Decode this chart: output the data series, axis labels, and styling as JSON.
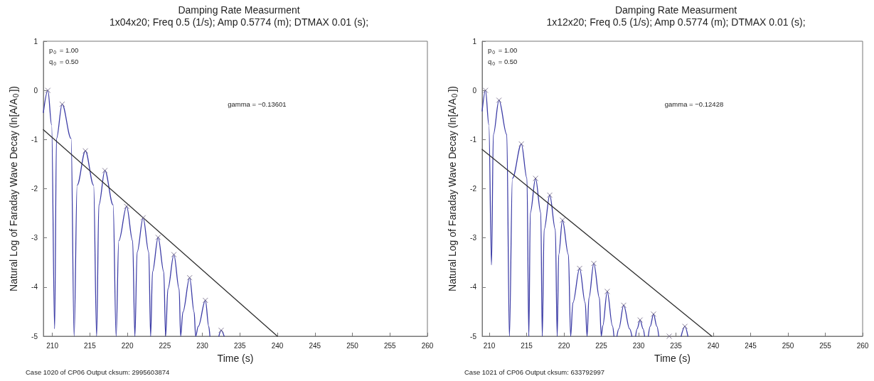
{
  "chart_data": [
    {
      "type": "line",
      "title": "Damping Rate Measurment",
      "subtitle": "1x04x20; Freq 0.5 (1/s); Amp 0.5774 (m); DTMAX 0.01 (s);",
      "xlabel": "Time (s)",
      "ylabel": "Natural Log of Faraday Wave Decay (ln[A/A$_{0}$])",
      "annotations": [
        "p$_{0}$ = 1.00",
        "q$_{0}$ = 0.50",
        "gamma = −0.13601",
        "Case 1020 of CP06 Output cksum: 2995603874"
      ],
      "xlim": [
        208.8,
        260
      ],
      "xticks": [
        210,
        215,
        220,
        225,
        230,
        235,
        240,
        245,
        250,
        255,
        260
      ],
      "ylim": [
        -5,
        1
      ],
      "yticks": [
        -5,
        -4,
        -3,
        -2,
        -1,
        0,
        1
      ],
      "grid": false,
      "series": [
        {
          "type": "line",
          "marker": "none",
          "color": "#3c3ca6",
          "x": [
            208.8,
            209.4,
            209.9,
            210.3,
            210.55,
            211.3,
            212.5,
            212.9,
            213.3,
            214.4,
            215.5,
            215.9,
            216.2,
            217.0,
            218.1,
            218.5,
            218.85,
            219.9,
            220.7,
            221.0,
            221.3,
            222.1,
            222.85,
            223.1,
            223.35,
            224.1,
            224.85,
            225.1,
            225.4,
            226.2,
            226.9,
            227.1,
            227.4,
            228.3,
            228.9,
            229.1,
            229.45,
            230.4,
            230.85,
            231.0,
            231.6,
            232.2,
            232.5,
            232.9
          ],
          "values": [
            -0.45,
            0,
            -0.7,
            -4.85,
            -0.98,
            -0.28,
            -0.98,
            -5,
            -1.93,
            -1.23,
            -1.93,
            -5,
            -2.33,
            -1.63,
            -2.33,
            -5,
            -3.06,
            -2.36,
            -3.06,
            -5,
            -3.29,
            -2.59,
            -3.29,
            -5,
            -3.69,
            -2.99,
            -3.69,
            -5,
            -4.04,
            -3.34,
            -4.04,
            -5,
            -4.51,
            -3.81,
            -4.51,
            -5,
            -4.8,
            -4.27,
            -4.8,
            -5,
            null,
            -5,
            -4.88,
            -5
          ]
        },
        {
          "type": "scatter",
          "marker": "cross",
          "color": "#6a6080",
          "x": [
            209.4,
            211.3,
            214.4,
            217.0,
            219.9,
            222.1,
            224.1,
            226.2,
            228.3,
            230.4,
            232.5
          ],
          "values": [
            0,
            -0.28,
            -1.23,
            -1.63,
            -2.36,
            -2.59,
            -2.99,
            -3.34,
            -3.81,
            -4.27,
            -4.88
          ]
        },
        {
          "type": "line",
          "marker": "none",
          "color": "#303030",
          "x": [
            208.8,
            240
          ],
          "values": [
            -0.8,
            -5
          ]
        }
      ]
    },
    {
      "type": "line",
      "title": "Damping Rate Measurment",
      "subtitle": "1x12x20; Freq 0.5 (1/s); Amp 0.5774 (m); DTMAX 0.01 (s);",
      "xlabel": "Time (s)",
      "ylabel": "Natural Log of Faraday Wave Decay (ln[A/A$_{0}$])",
      "annotations": [
        "p$_{0}$ = 1.00",
        "q$_{0}$ = 0.50",
        "gamma = −0.12428",
        "Case 1021 of CP06 Output cksum: 633792997"
      ],
      "xlim": [
        209.05,
        260
      ],
      "xticks": [
        210,
        215,
        220,
        225,
        230,
        235,
        240,
        245,
        250,
        255,
        260
      ],
      "ylim": [
        -5,
        1
      ],
      "yticks": [
        -5,
        -4,
        -3,
        -2,
        -1,
        0,
        1
      ],
      "grid": false,
      "series": [
        {
          "type": "line",
          "marker": "none",
          "color": "#3c3ca6",
          "x": [
            209.05,
            209.5,
            209.95,
            210.3,
            210.55,
            211.3,
            212.35,
            212.7,
            213.1,
            214.3,
            215.05,
            215.3,
            215.5,
            216.2,
            216.9,
            217.1,
            217.35,
            218.1,
            218.85,
            219.1,
            219.3,
            219.8,
            220.6,
            220.9,
            221.2,
            222.1,
            222.85,
            223.1,
            223.35,
            224.0,
            224.75,
            225.0,
            225.2,
            225.8,
            226.5,
            226.7,
            226.9,
            227.1,
            227.35,
            228.0,
            228.8,
            229.1,
            229.35,
            229.6,
            229.8,
            230.2,
            230.6,
            230.8,
            231.05,
            231.3,
            231.55,
            232.0,
            232.45,
            232.7,
            234.2,
            235.7,
            236.2,
            236.6
          ],
          "values": [
            -0.42,
            0,
            -0.7,
            -3.55,
            -0.9,
            -0.2,
            -0.9,
            -5,
            -1.79,
            -1.09,
            -1.79,
            -5,
            -2.49,
            -1.79,
            -2.49,
            -5,
            -2.83,
            -2.13,
            -2.83,
            -5,
            -3.34,
            -2.64,
            -3.34,
            -5,
            -4.32,
            -3.62,
            -4.32,
            -5,
            -4.22,
            -3.52,
            -4.22,
            -5,
            -4.79,
            -4.09,
            -4.79,
            -5,
            null,
            -5,
            -4.85,
            -4.37,
            -4.85,
            -5,
            null,
            -5,
            -4.85,
            -4.67,
            -4.85,
            -5,
            null,
            -5,
            -4.8,
            -4.55,
            -4.8,
            -5,
            null,
            -5,
            -4.8,
            -5
          ]
        },
        {
          "type": "scatter",
          "marker": "cross",
          "color": "#6a6080",
          "x": [
            209.5,
            211.3,
            214.3,
            216.2,
            218.1,
            219.8,
            222.1,
            224.0,
            225.8,
            228.0,
            230.2,
            232.0,
            234.1,
            236.2
          ],
          "values": [
            0,
            -0.2,
            -1.09,
            -1.79,
            -2.13,
            -2.64,
            -3.62,
            -3.52,
            -4.09,
            -4.37,
            -4.67,
            -4.55,
            -5,
            -4.8
          ]
        },
        {
          "type": "line",
          "marker": "none",
          "color": "#303030",
          "x": [
            209.05,
            239.8
          ],
          "values": [
            -1.2,
            -5
          ]
        }
      ]
    }
  ]
}
